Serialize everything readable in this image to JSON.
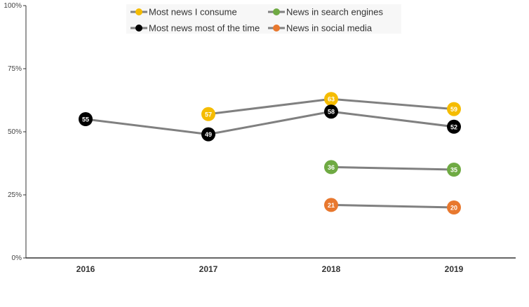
{
  "chart_data": {
    "type": "line",
    "categories": [
      "2016",
      "2017",
      "2018",
      "2019"
    ],
    "ylim": [
      0,
      100
    ],
    "yticks": [
      "0%",
      "25%",
      "50%",
      "75%",
      "100%"
    ],
    "grid": false,
    "legend_position": "top",
    "line_color": "#808080",
    "series": [
      {
        "name": "Most news I consume",
        "color": "#F5BC00",
        "values": [
          null,
          57,
          63,
          59
        ]
      },
      {
        "name": "News in search engines",
        "color": "#6FAA43",
        "values": [
          null,
          null,
          36,
          35
        ]
      },
      {
        "name": "Most news most of the time",
        "color": "#000000",
        "values": [
          55,
          49,
          58,
          52
        ]
      },
      {
        "name": "News in social media",
        "color": "#E8782E",
        "values": [
          null,
          null,
          21,
          20
        ]
      }
    ]
  }
}
